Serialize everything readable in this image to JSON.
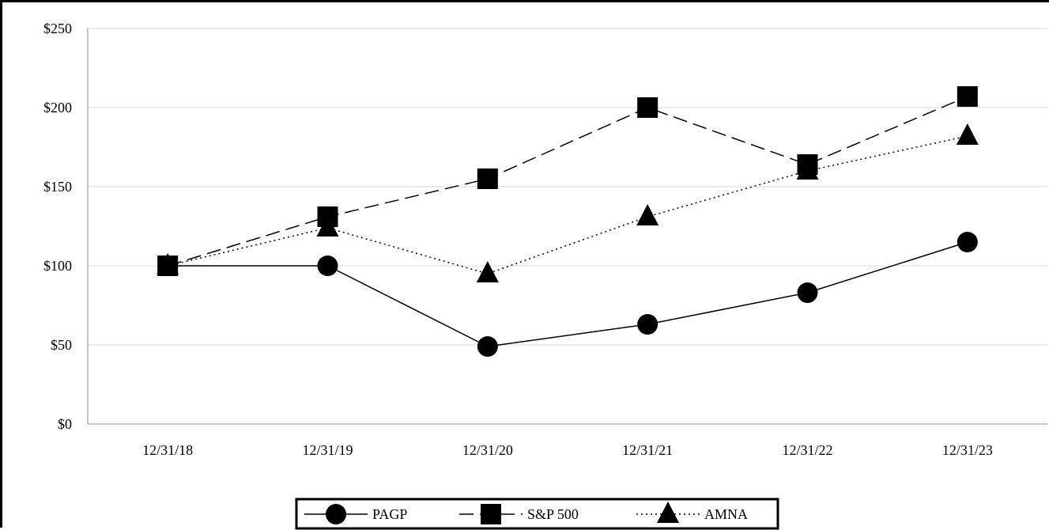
{
  "chart_data": {
    "type": "line",
    "categories": [
      "12/31/18",
      "12/31/19",
      "12/31/20",
      "12/31/21",
      "12/31/22",
      "12/31/23"
    ],
    "y_tick_labels": [
      "$0",
      "$50",
      "$100",
      "$150",
      "$200",
      "$250"
    ],
    "ylim": [
      0,
      250
    ],
    "grid": true,
    "legend_position": "bottom",
    "series": [
      {
        "name": "PAGP",
        "marker": "circle",
        "line_style": "solid",
        "values": [
          100,
          100,
          49,
          63,
          83,
          115
        ]
      },
      {
        "name": "S&P 500",
        "marker": "square",
        "line_style": "dashed",
        "values": [
          100,
          131,
          155,
          200,
          164,
          207
        ]
      },
      {
        "name": "AMNA",
        "marker": "triangle",
        "line_style": "dotted",
        "values": [
          100,
          124,
          95,
          131,
          160,
          182
        ]
      }
    ],
    "colors": {
      "lines": "#000000",
      "grid": "#d9d9d9"
    }
  }
}
